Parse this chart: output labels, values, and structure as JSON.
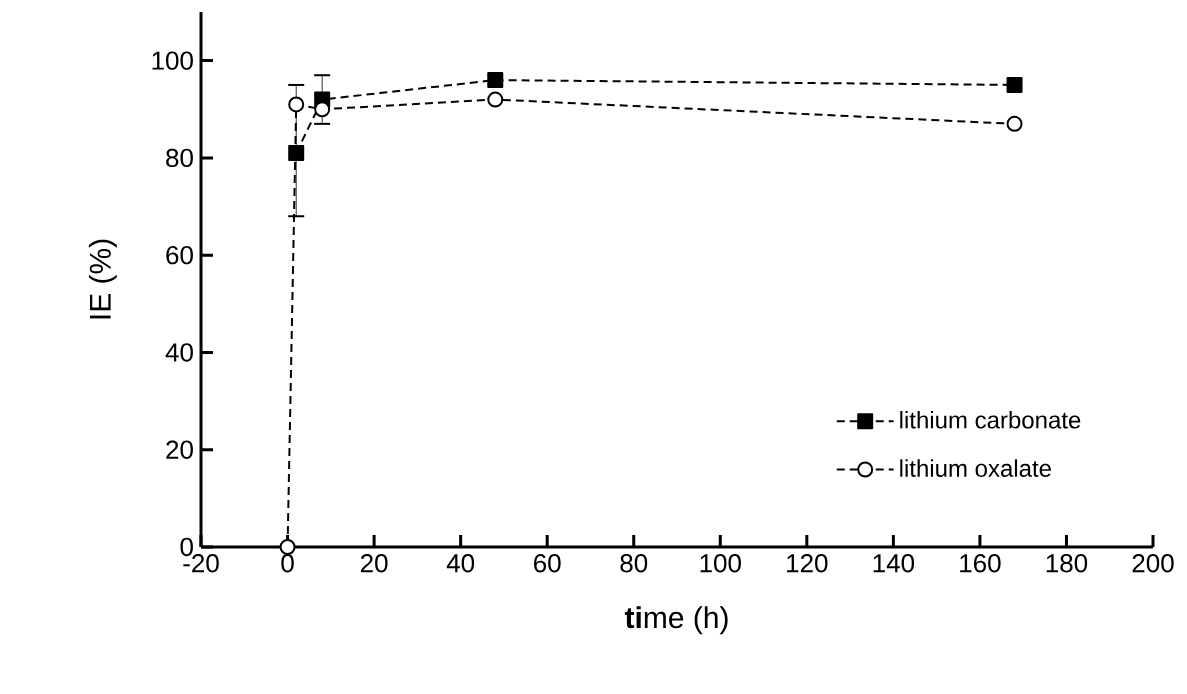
{
  "chart_data": {
    "type": "line",
    "xlabel": "**ti**me (h)",
    "ylabel": "IE (%)",
    "xlim": [
      -20,
      200
    ],
    "xticks": [
      -20,
      0,
      20,
      40,
      60,
      80,
      100,
      120,
      140,
      160,
      180,
      200
    ],
    "ylim": [
      0,
      110
    ],
    "yticks": [
      0,
      20,
      40,
      60,
      80,
      100
    ],
    "grid": false,
    "legend": "bottom right",
    "line_style": "dashed",
    "series": [
      {
        "name": "lithium carbonate",
        "color": "#000000",
        "marker": "square",
        "x": [
          2,
          8,
          48,
          168
        ],
        "values": [
          81,
          92,
          96,
          95
        ],
        "errors": [
          [
            68,
            95
          ],
          5,
          null,
          null
        ]
      },
      {
        "name": "lithium oxalate",
        "color": "#000000",
        "marker": "circle",
        "x": [
          0,
          2,
          8,
          48,
          168
        ],
        "values": [
          0,
          91,
          90,
          92,
          87
        ],
        "errors": [
          null,
          null,
          null,
          null,
          null
        ]
      }
    ]
  }
}
